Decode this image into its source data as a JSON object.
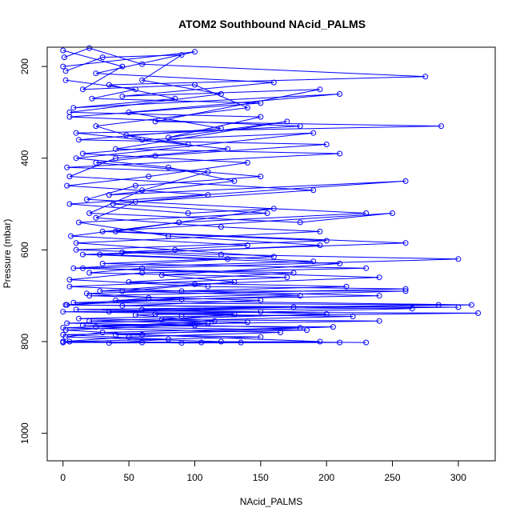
{
  "chart_data": {
    "type": "line",
    "title": "ATOM2 Southbound NAcid_PALMS",
    "xlabel": "NAcid_PALMS",
    "ylabel": "Pressure (mbar)",
    "xlim": [
      -12,
      328
    ],
    "ylim": [
      1060,
      158
    ],
    "y_reversed": true,
    "x_ticks": [
      0,
      50,
      100,
      150,
      200,
      250,
      300
    ],
    "y_ticks": [
      200,
      400,
      600,
      800,
      1000
    ],
    "grid": false,
    "legend": "none",
    "marker": "open-circle",
    "color": "#0000ff",
    "series": [
      {
        "points": [
          [
            2,
            210
          ],
          [
            30,
            180
          ],
          [
            90,
            175
          ],
          [
            60,
            230
          ],
          [
            120,
            260
          ],
          [
            5,
            300
          ],
          [
            150,
            310
          ],
          [
            80,
            355
          ],
          [
            170,
            320
          ],
          [
            40,
            380
          ],
          [
            210,
            390
          ],
          [
            3,
            420
          ],
          [
            110,
            430
          ],
          [
            60,
            470
          ],
          [
            20,
            520
          ],
          [
            180,
            540
          ],
          [
            250,
            520
          ],
          [
            30,
            560
          ],
          [
            200,
            580
          ],
          [
            10,
            600
          ],
          [
            120,
            610
          ],
          [
            300,
            620
          ],
          [
            60,
            640
          ],
          [
            20,
            650
          ],
          [
            170,
            660
          ],
          [
            5,
            680
          ],
          [
            90,
            690
          ],
          [
            240,
            700
          ],
          [
            40,
            710
          ],
          [
            310,
            720
          ],
          [
            10,
            730
          ],
          [
            150,
            735
          ],
          [
            70,
            740
          ],
          [
            220,
            745
          ],
          [
            3,
            760
          ],
          [
            100,
            765
          ],
          [
            180,
            770
          ],
          [
            30,
            780
          ],
          [
            2,
            790
          ],
          [
            120,
            800
          ],
          [
            230,
            802
          ]
        ]
      },
      {
        "points": [
          [
            0,
            165
          ],
          [
            45,
            200
          ],
          [
            15,
            250
          ],
          [
            100,
            240
          ],
          [
            140,
            290
          ],
          [
            25,
            330
          ],
          [
            60,
            360
          ],
          [
            190,
            345
          ],
          [
            10,
            400
          ],
          [
            80,
            420
          ],
          [
            130,
            450
          ],
          [
            35,
            480
          ],
          [
            260,
            450
          ],
          [
            5,
            500
          ],
          [
            95,
            520
          ],
          [
            160,
            510
          ],
          [
            40,
            560
          ],
          [
            260,
            585
          ],
          [
            15,
            610
          ],
          [
            210,
            630
          ],
          [
            75,
            655
          ],
          [
            130,
            670
          ],
          [
            45,
            690
          ],
          [
            180,
            700
          ],
          [
            8,
            715
          ],
          [
            285,
            720
          ],
          [
            60,
            730
          ],
          [
            200,
            740
          ],
          [
            20,
            755
          ],
          [
            110,
            760
          ],
          [
            0,
            770
          ],
          [
            165,
            780
          ],
          [
            50,
            790
          ],
          [
            0,
            800
          ],
          [
            90,
            803
          ],
          [
            210,
            802
          ]
        ]
      },
      {
        "points": [
          [
            1,
            180
          ],
          [
            20,
            160
          ],
          [
            60,
            195
          ],
          [
            275,
            222
          ],
          [
            35,
            240
          ],
          [
            85,
            270
          ],
          [
            8,
            290
          ],
          [
            210,
            260
          ],
          [
            50,
            300
          ],
          [
            120,
            335
          ],
          [
            12,
            360
          ],
          [
            200,
            370
          ],
          [
            70,
            395
          ],
          [
            25,
            410
          ],
          [
            150,
            440
          ],
          [
            55,
            460
          ],
          [
            18,
            490
          ],
          [
            230,
            520
          ],
          [
            88,
            540
          ],
          [
            6,
            570
          ],
          [
            140,
            590
          ],
          [
            45,
            605
          ],
          [
            190,
            625
          ],
          [
            15,
            640
          ],
          [
            240,
            660
          ],
          [
            100,
            675
          ],
          [
            28,
            690
          ],
          [
            260,
            690
          ],
          [
            65,
            705
          ],
          [
            3,
            720
          ],
          [
            175,
            725
          ],
          [
            35,
            735
          ],
          [
            315,
            738
          ],
          [
            90,
            745
          ],
          [
            12,
            750
          ],
          [
            140,
            758
          ],
          [
            2,
            775
          ],
          [
            60,
            785
          ],
          [
            195,
            800
          ],
          [
            0,
            802
          ],
          [
            135,
            802
          ]
        ]
      },
      {
        "points": [
          [
            0,
            200
          ],
          [
            100,
            168
          ],
          [
            25,
            215
          ],
          [
            160,
            235
          ],
          [
            45,
            265
          ],
          [
            195,
            250
          ],
          [
            70,
            320
          ],
          [
            287,
            330
          ],
          [
            10,
            345
          ],
          [
            125,
            380
          ],
          [
            40,
            400
          ],
          [
            5,
            440
          ],
          [
            190,
            470
          ],
          [
            55,
            495
          ],
          [
            25,
            530
          ],
          [
            120,
            550
          ],
          [
            195,
            560
          ],
          [
            10,
            585
          ],
          [
            85,
            600
          ],
          [
            160,
            615
          ],
          [
            30,
            630
          ],
          [
            230,
            640
          ],
          [
            60,
            650
          ],
          [
            5,
            665
          ],
          [
            110,
            680
          ],
          [
            260,
            685
          ],
          [
            20,
            700
          ],
          [
            150,
            710
          ],
          [
            45,
            722
          ],
          [
            300,
            725
          ],
          [
            0,
            735
          ],
          [
            130,
            740
          ],
          [
            75,
            752
          ],
          [
            240,
            755
          ],
          [
            15,
            765
          ],
          [
            205,
            768
          ],
          [
            40,
            785
          ],
          [
            150,
            790
          ],
          [
            5,
            800
          ],
          [
            60,
            802
          ]
        ]
      },
      {
        "points": [
          [
            2,
            230
          ],
          [
            55,
            250
          ],
          [
            22,
            270
          ],
          [
            150,
            280
          ],
          [
            5,
            310
          ],
          [
            180,
            330
          ],
          [
            48,
            350
          ],
          [
            95,
            370
          ],
          [
            15,
            390
          ],
          [
            140,
            410
          ],
          [
            65,
            440
          ],
          [
            3,
            460
          ],
          [
            110,
            480
          ],
          [
            38,
            500
          ],
          [
            155,
            520
          ],
          [
            12,
            540
          ],
          [
            80,
            570
          ],
          [
            195,
            590
          ],
          [
            28,
            610
          ],
          [
            125,
            620
          ],
          [
            8,
            640
          ],
          [
            175,
            650
          ],
          [
            50,
            670
          ],
          [
            215,
            680
          ],
          [
            18,
            695
          ],
          [
            90,
            708
          ],
          [
            2,
            720
          ],
          [
            265,
            728
          ],
          [
            55,
            742
          ],
          [
            115,
            755
          ],
          [
            25,
            768
          ],
          [
            185,
            775
          ],
          [
            0,
            785
          ],
          [
            80,
            795
          ],
          [
            35,
            803
          ],
          [
            105,
            802
          ]
        ]
      }
    ]
  }
}
